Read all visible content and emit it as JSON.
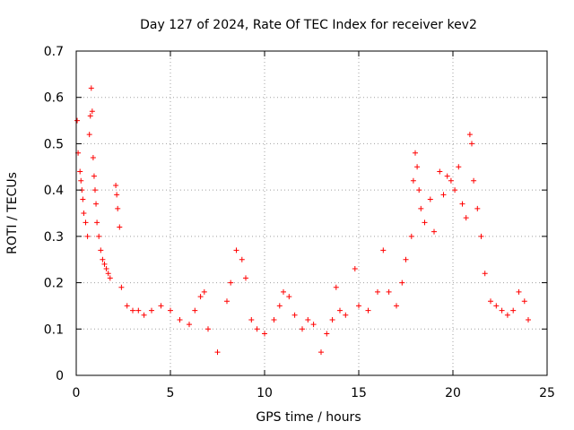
{
  "chart_data": {
    "type": "scatter",
    "title": "Day 127 of 2024, Rate Of TEC Index for receiver kev2",
    "xlabel": "GPS time / hours",
    "ylabel": "ROTI / TECUs",
    "xlim": [
      0,
      25
    ],
    "ylim": [
      0,
      0.7
    ],
    "xticks": [
      0,
      5,
      10,
      15,
      20,
      25
    ],
    "yticks": [
      0,
      0.1,
      0.2,
      0.3,
      0.4,
      0.5,
      0.6,
      0.7
    ],
    "xtick_labels": [
      "0",
      "5",
      "10",
      "15",
      "20",
      "25"
    ],
    "ytick_labels": [
      "0",
      "0.1",
      "0.2",
      "0.3",
      "0.4",
      "0.5",
      "0.6",
      "0.7"
    ],
    "grid": true,
    "marker": "+",
    "color": "#ff0000",
    "series": [
      {
        "name": "ROTI",
        "points": [
          [
            0.05,
            0.55
          ],
          [
            0.1,
            0.48
          ],
          [
            0.2,
            0.44
          ],
          [
            0.25,
            0.42
          ],
          [
            0.3,
            0.4
          ],
          [
            0.35,
            0.38
          ],
          [
            0.4,
            0.35
          ],
          [
            0.5,
            0.33
          ],
          [
            0.6,
            0.3
          ],
          [
            0.7,
            0.52
          ],
          [
            0.75,
            0.56
          ],
          [
            0.8,
            0.62
          ],
          [
            0.85,
            0.57
          ],
          [
            0.9,
            0.47
          ],
          [
            0.95,
            0.43
          ],
          [
            1.0,
            0.4
          ],
          [
            1.05,
            0.37
          ],
          [
            1.1,
            0.33
          ],
          [
            1.2,
            0.3
          ],
          [
            1.3,
            0.27
          ],
          [
            1.4,
            0.25
          ],
          [
            1.5,
            0.24
          ],
          [
            1.6,
            0.23
          ],
          [
            1.7,
            0.22
          ],
          [
            1.8,
            0.21
          ],
          [
            2.1,
            0.41
          ],
          [
            2.15,
            0.39
          ],
          [
            2.2,
            0.36
          ],
          [
            2.3,
            0.32
          ],
          [
            2.4,
            0.19
          ],
          [
            2.7,
            0.15
          ],
          [
            3.0,
            0.14
          ],
          [
            3.3,
            0.14
          ],
          [
            3.6,
            0.13
          ],
          [
            4.0,
            0.14
          ],
          [
            4.5,
            0.15
          ],
          [
            5.0,
            0.14
          ],
          [
            5.5,
            0.12
          ],
          [
            6.0,
            0.11
          ],
          [
            6.3,
            0.14
          ],
          [
            6.6,
            0.17
          ],
          [
            6.8,
            0.18
          ],
          [
            7.0,
            0.1
          ],
          [
            7.5,
            0.05
          ],
          [
            8.0,
            0.16
          ],
          [
            8.2,
            0.2
          ],
          [
            8.5,
            0.27
          ],
          [
            8.8,
            0.25
          ],
          [
            9.0,
            0.21
          ],
          [
            9.3,
            0.12
          ],
          [
            9.6,
            0.1
          ],
          [
            10.0,
            0.09
          ],
          [
            10.5,
            0.12
          ],
          [
            10.8,
            0.15
          ],
          [
            11.0,
            0.18
          ],
          [
            11.3,
            0.17
          ],
          [
            11.6,
            0.13
          ],
          [
            12.0,
            0.1
          ],
          [
            12.3,
            0.12
          ],
          [
            12.6,
            0.11
          ],
          [
            13.0,
            0.05
          ],
          [
            13.3,
            0.09
          ],
          [
            13.6,
            0.12
          ],
          [
            13.8,
            0.19
          ],
          [
            14.0,
            0.14
          ],
          [
            14.3,
            0.13
          ],
          [
            14.8,
            0.23
          ],
          [
            15.0,
            0.15
          ],
          [
            15.5,
            0.14
          ],
          [
            16.0,
            0.18
          ],
          [
            16.3,
            0.27
          ],
          [
            16.6,
            0.18
          ],
          [
            17.0,
            0.15
          ],
          [
            17.3,
            0.2
          ],
          [
            17.5,
            0.25
          ],
          [
            17.8,
            0.3
          ],
          [
            17.9,
            0.42
          ],
          [
            18.0,
            0.48
          ],
          [
            18.1,
            0.45
          ],
          [
            18.2,
            0.4
          ],
          [
            18.3,
            0.36
          ],
          [
            18.5,
            0.33
          ],
          [
            18.8,
            0.38
          ],
          [
            19.0,
            0.31
          ],
          [
            19.3,
            0.44
          ],
          [
            19.5,
            0.39
          ],
          [
            19.7,
            0.43
          ],
          [
            19.9,
            0.42
          ],
          [
            20.1,
            0.4
          ],
          [
            20.3,
            0.45
          ],
          [
            20.5,
            0.37
          ],
          [
            20.7,
            0.34
          ],
          [
            20.9,
            0.52
          ],
          [
            21.0,
            0.5
          ],
          [
            21.1,
            0.42
          ],
          [
            21.3,
            0.36
          ],
          [
            21.5,
            0.3
          ],
          [
            21.7,
            0.22
          ],
          [
            22.0,
            0.16
          ],
          [
            22.3,
            0.15
          ],
          [
            22.6,
            0.14
          ],
          [
            22.9,
            0.13
          ],
          [
            23.2,
            0.14
          ],
          [
            23.5,
            0.18
          ],
          [
            23.8,
            0.16
          ],
          [
            24.0,
            0.12
          ]
        ]
      }
    ]
  }
}
